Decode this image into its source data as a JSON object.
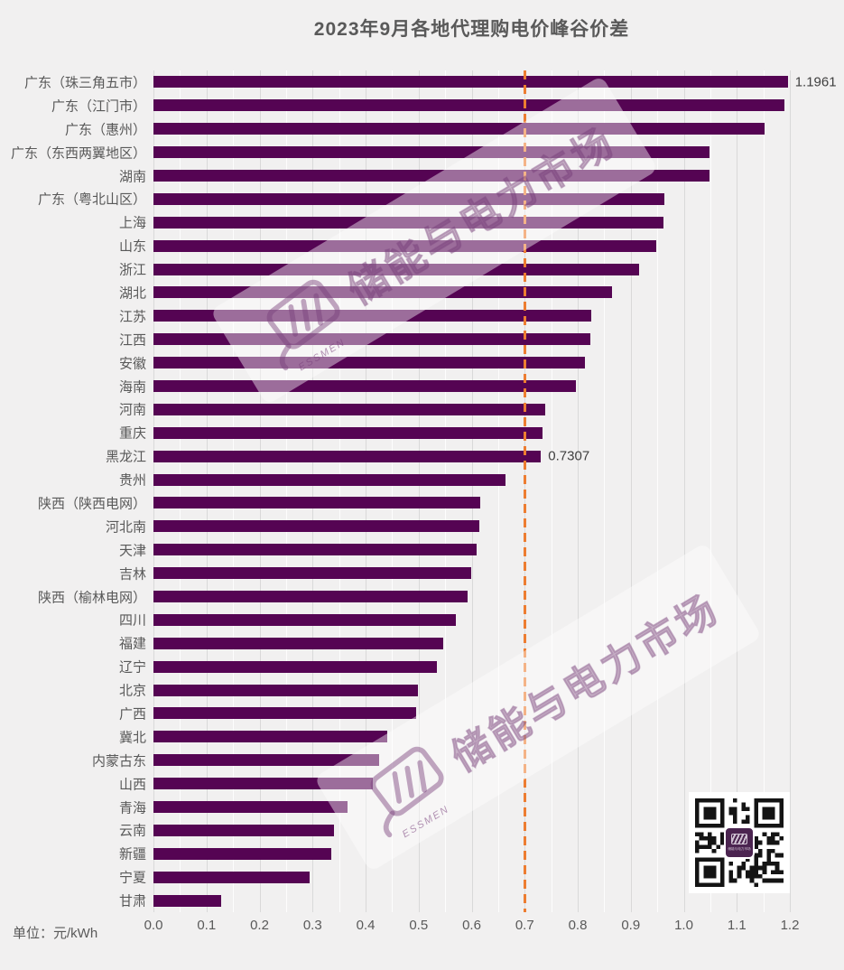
{
  "title": "2023年9月各地代理购电价峰谷价差",
  "unit_label": "单位：元/kWh",
  "watermark": {
    "brand_text": "储能与电力市场",
    "sub_text": "ESSMEN"
  },
  "colors": {
    "bar": "#550453",
    "reference_line": "#ED7D31",
    "background": "#F1F0F0",
    "gridline": "#D9D9D9",
    "title_text": "#595959",
    "label_text": "#595959",
    "value_text": "#3F3F3F"
  },
  "chart_data": {
    "type": "bar",
    "orientation": "horizontal",
    "title": "2023年9月各地代理购电价峰谷价差",
    "unit": "元/kWh",
    "xlim": [
      0,
      1.2
    ],
    "x_ticks": [
      "0.0",
      "0.1",
      "0.2",
      "0.3",
      "0.4",
      "0.5",
      "0.6",
      "0.7",
      "0.8",
      "0.9",
      "1.0",
      "1.1",
      "1.2"
    ],
    "reference_line_x": 0.7,
    "grid": true,
    "categories": [
      "广东（珠三角五市）",
      "广东（江门市）",
      "广东（惠州）",
      "广东（东西两翼地区）",
      "湖南",
      "广东（粤北山区）",
      "上海",
      "山东",
      "浙江",
      "湖北",
      "江苏",
      "江西",
      "安徽",
      "海南",
      "河南",
      "重庆",
      "黑龙江",
      "贵州",
      "陕西（陕西电网）",
      "河北南",
      "天津",
      "吉林",
      "陕西（榆林电网）",
      "四川",
      "福建",
      "辽宁",
      "北京",
      "广西",
      "冀北",
      "内蒙古东",
      "山西",
      "青海",
      "云南",
      "新疆",
      "宁夏",
      "甘肃"
    ],
    "values": [
      1.1961,
      1.189,
      1.152,
      1.049,
      1.048,
      0.963,
      0.961,
      0.948,
      0.915,
      0.864,
      0.826,
      0.823,
      0.813,
      0.797,
      0.738,
      0.733,
      0.7307,
      0.664,
      0.617,
      0.614,
      0.61,
      0.599,
      0.592,
      0.57,
      0.547,
      0.534,
      0.498,
      0.495,
      0.44,
      0.425,
      0.413,
      0.366,
      0.341,
      0.335,
      0.294,
      0.128
    ],
    "value_labels": [
      {
        "index": 0,
        "text": "1.1961"
      },
      {
        "index": 16,
        "text": "0.7307"
      }
    ]
  }
}
